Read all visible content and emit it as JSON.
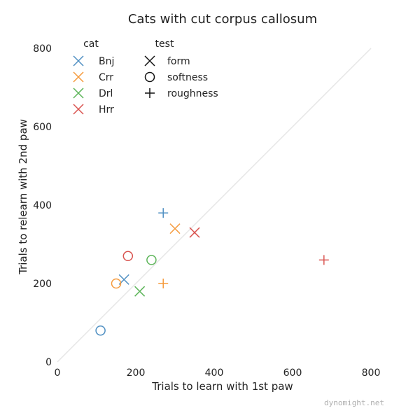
{
  "chart_data": {
    "type": "scatter",
    "title": "Cats with cut corpus callosum",
    "xlabel": "Trials to learn with 1st paw",
    "ylabel": "Trials to relearn with 2nd paw",
    "xlim": [
      0,
      800
    ],
    "ylim": [
      0,
      800
    ],
    "xticks": [
      "0",
      "200",
      "400",
      "600",
      "800"
    ],
    "yticks": [
      "0",
      "200",
      "400",
      "600",
      "800"
    ],
    "grid": false,
    "diagonal_line": true,
    "legend_placement": "top-left",
    "legend": {
      "cat_title": "cat",
      "test_title": "test",
      "cats": [
        {
          "name": "Bnj",
          "color": "#4f8fc2"
        },
        {
          "name": "Crr",
          "color": "#f59a3c"
        },
        {
          "name": "Drl",
          "color": "#5db55a"
        },
        {
          "name": "Hrr",
          "color": "#d9534f"
        }
      ],
      "tests": [
        {
          "name": "form",
          "marker": "x"
        },
        {
          "name": "softness",
          "marker": "circle"
        },
        {
          "name": "roughness",
          "marker": "plus"
        }
      ]
    },
    "points": [
      {
        "cat": "Bnj",
        "test": "form",
        "x": 170,
        "y": 210
      },
      {
        "cat": "Bnj",
        "test": "softness",
        "x": 110,
        "y": 80
      },
      {
        "cat": "Bnj",
        "test": "roughness",
        "x": 270,
        "y": 380
      },
      {
        "cat": "Crr",
        "test": "form",
        "x": 300,
        "y": 340
      },
      {
        "cat": "Crr",
        "test": "softness",
        "x": 150,
        "y": 200
      },
      {
        "cat": "Crr",
        "test": "roughness",
        "x": 270,
        "y": 200
      },
      {
        "cat": "Drl",
        "test": "form",
        "x": 210,
        "y": 180
      },
      {
        "cat": "Drl",
        "test": "softness",
        "x": 240,
        "y": 260
      },
      {
        "cat": "Hrr",
        "test": "form",
        "x": 350,
        "y": 330
      },
      {
        "cat": "Hrr",
        "test": "softness",
        "x": 180,
        "y": 270
      },
      {
        "cat": "Hrr",
        "test": "roughness",
        "x": 680,
        "y": 260
      }
    ]
  },
  "watermark": "dynomight.net"
}
